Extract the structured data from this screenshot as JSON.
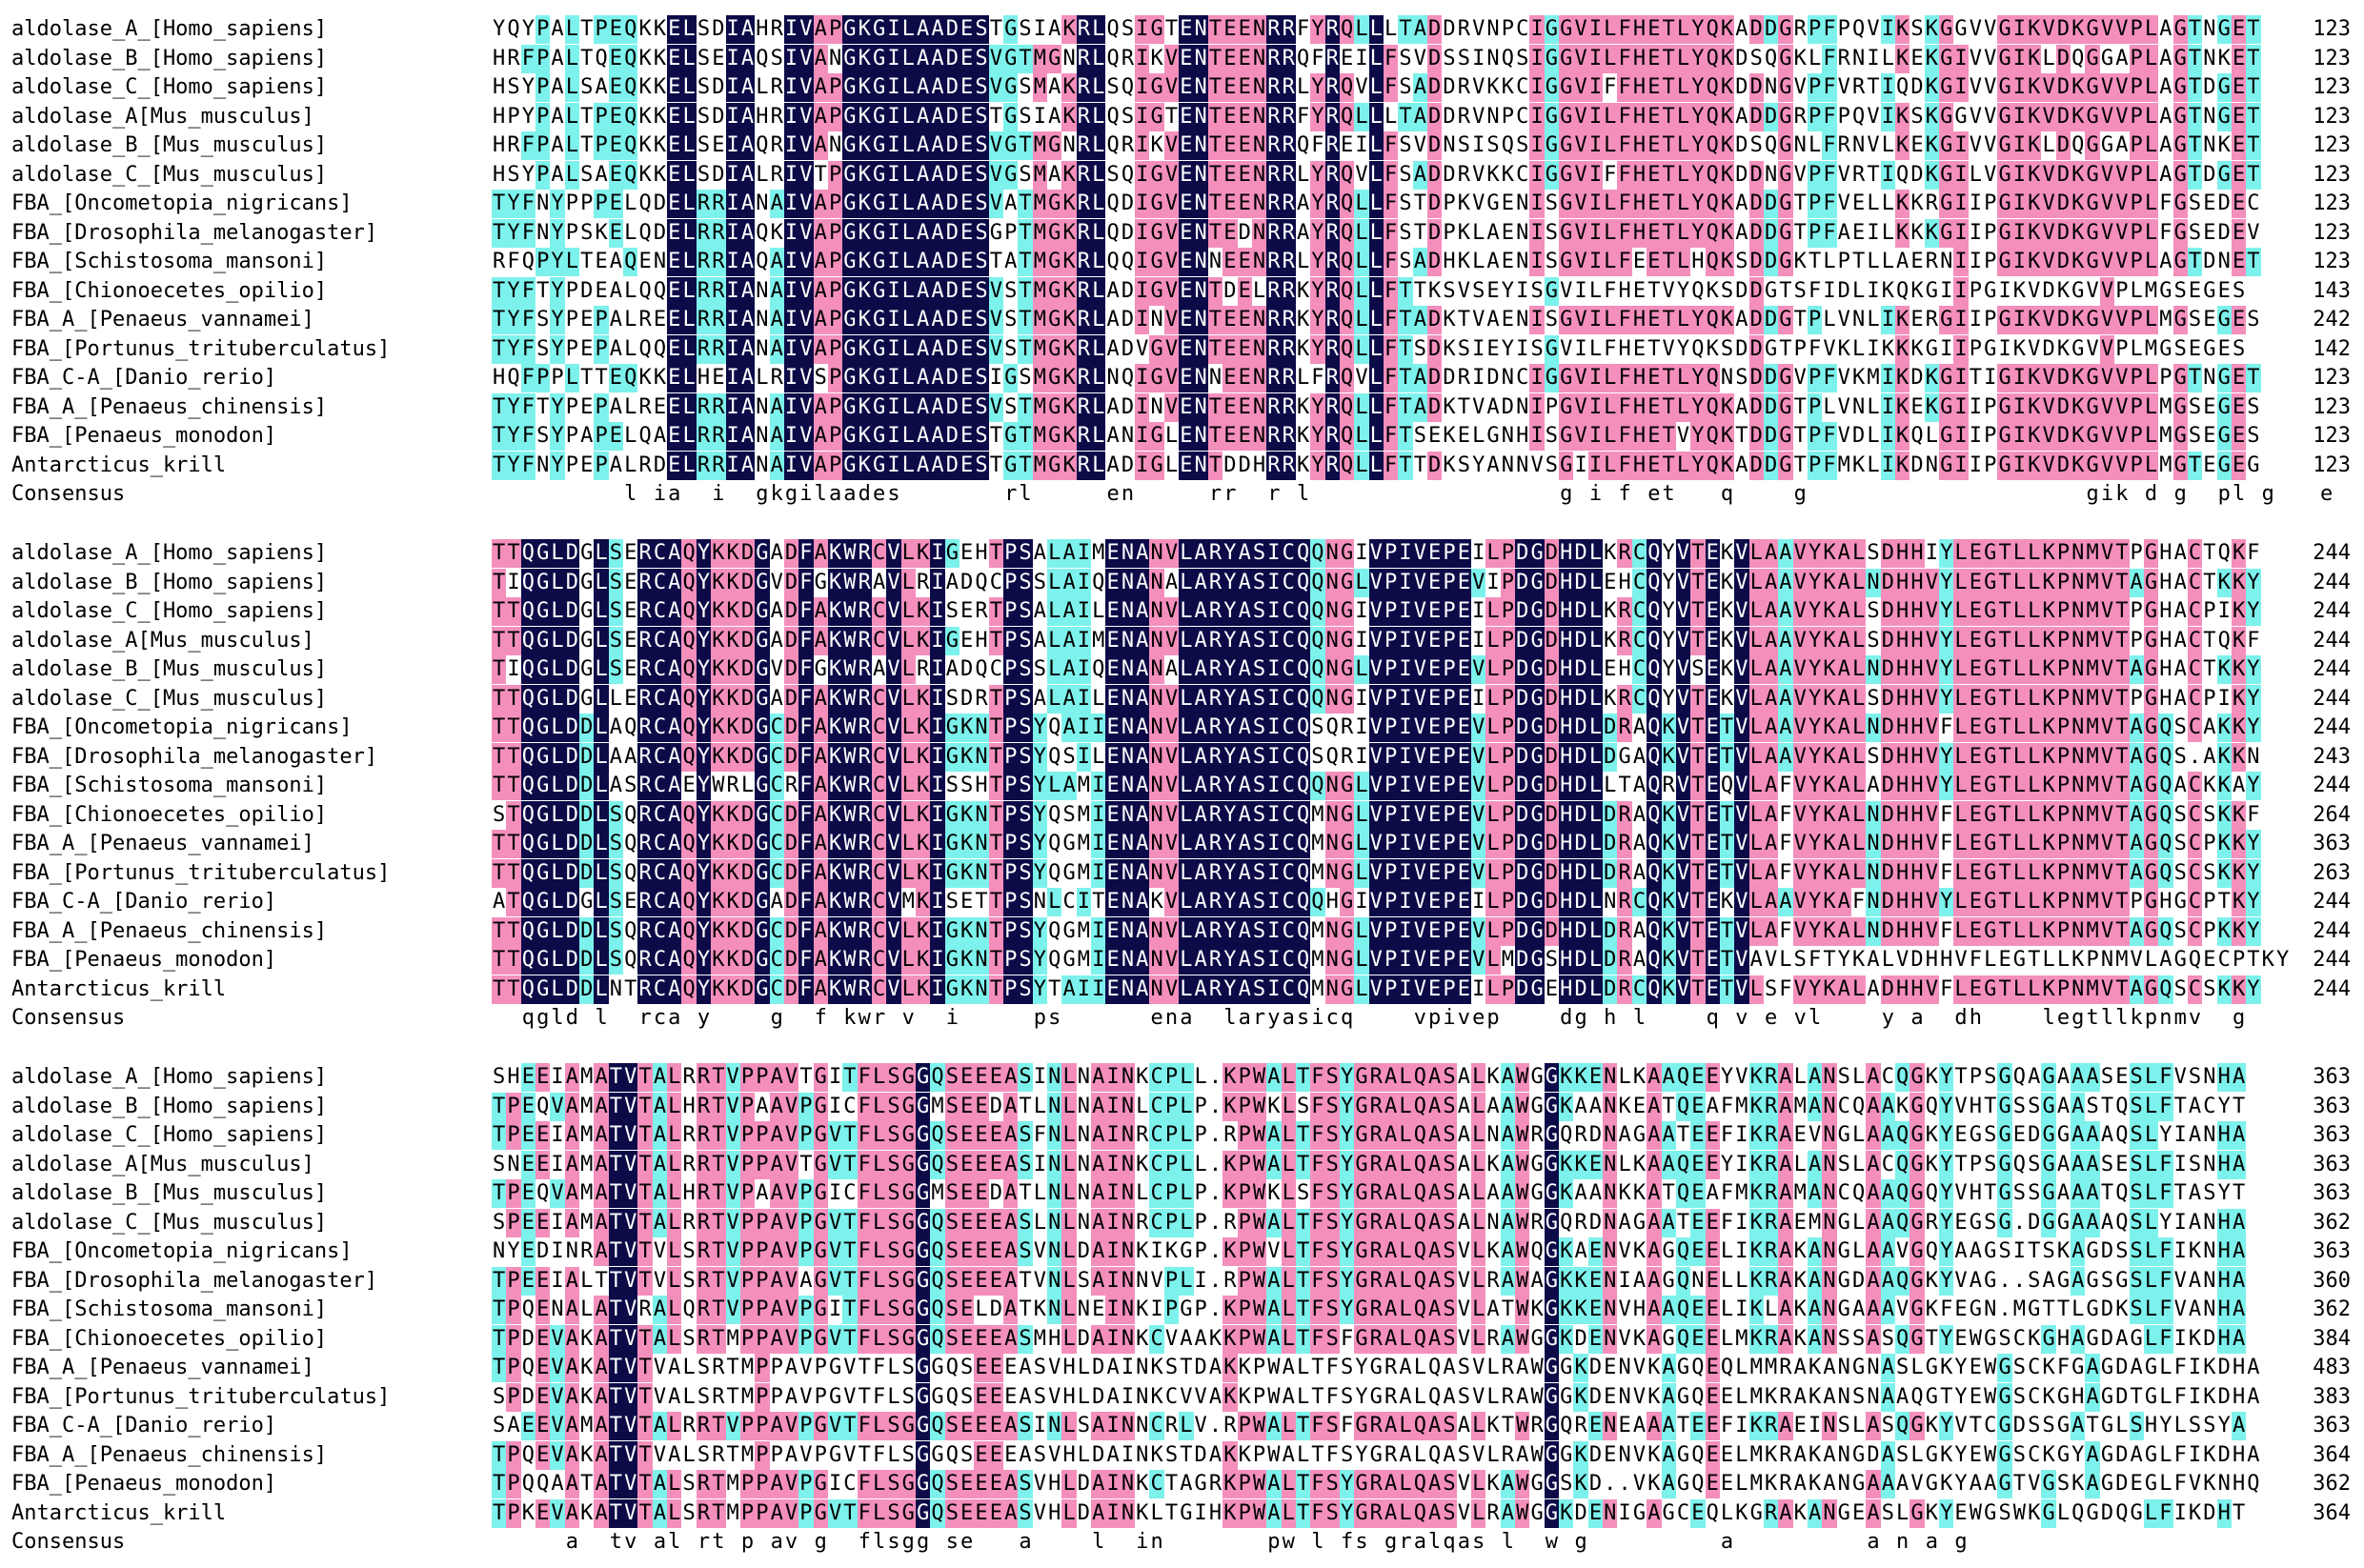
{
  "species": [
    "aldolase_A_[Homo_sapiens]",
    "aldolase_B_[Homo_sapiens]",
    "aldolase_C_[Homo_sapiens]",
    "aldolase_A[Mus_musculus]",
    "aldolase_B_[Mus_musculus]",
    "aldolase_C_[Mus_musculus]",
    "FBA_[Oncometopia_nigricans]",
    "FBA_[Drosophila_melanogaster]",
    "FBA_[Schistosoma_mansoni]",
    "FBA_[Chionoecetes_opilio]",
    "FBA_A_[Penaeus_vannamei]",
    "FBA_[Portunus_trituberculatus]",
    "FBA_C-A_[Danio_rerio]",
    "FBA_A_[Penaeus_chinensis]",
    "FBA_[Penaeus_monodon]",
    "Antarcticus_krill"
  ],
  "consensus_label": "Consensus",
  "blocks": [
    {
      "seqs": [
        "YQYPALTPEQKKELSDIAHRIVAPGKGILAADESTGSIAKRLQSIGTENTEENRRFYRQLLLTADDRVNPCIGGVILFHETLYQKADDGRPFPQVIKSKGGVVGIKVDKGVVPLAGTNGET",
        "HRFPALTQEQKKELSEIAQSIVANGKGILAADESVGTMGNRLQRIKVENTEENRRQFREILFSVDSSINQSIGGVILFHETLYQKDSQGKLFRNILKEKGIVVGIKLDQGGAPLAGTNKET",
        "HSYPALSAEQKKELSDIALRIVAPGKGILAADESVGSMAKRLSQIGVENTEENRRLYRQVLFSADDRVKKCIGGVIFFHETLYQKDDNGVPFVRTIQDKGIVVGIKVDKGVVPLAGTDGET",
        "HPYPALTPEQKKELSDIAHRIVAPGKGILAADESTGSIAKRLQSIGTENTEENRRFYRQLLLTADDRVNPCIGGVILFHETLYQKADDGRPFPQVIKSKGGVVGIKVDKGVVPLAGTNGET",
        "HRFPALTPEQKKELSEIAQRIVANGKGILAADESVGTMGNRLQRIKVENTEENRRQFREILFSVDNSISQSIGGVILFHETLYQKDSQGNLFRNVLKEKGIVVGIKLDQGGAPLAGTNKET",
        "HSYPALSAEQKKELSDIALRIVTPGKGILAADESVGSMAKRLSQIGVENTEENRRLYRQVLFSADDRVKKCIGGVIFFHETLYQKDDNGVPFVRTIQDKGILVGIKVDKGVVPLAGTDGET",
        "TYFNYPPPELQDELRRIANAIVAPGKGILAADESVATMGKRLQDIGVENTEENRRAYRQLLFSTDPKVGENISGVILFHETLYQKADDGTPFVELLKKRGIIPGIKVDKGVVPLFGSEDEC",
        "TYFNYPSKELQDELRRIAQKIVAPGKGILAADESGPTMGKRLQDIGVENTEDNRRAYRQLLFSTDPKLAENISGVILFHETLYQKADDGTPFAEILKKKGIIPGIKVDKGVVPLFGSEDEV",
        "RFQPYLTEAQENELRRIAQAIVAPGKGILAADESTATMGKRLQQIGVENNEENRRLYRQLLFSADHKLAENISGVILFEETLHQKSDDGKTLPTLLAERNIIPGIKVDKGVVPLAGTDNET",
        "TYFTYPDEALQQELRRIANAIVAPGKGILAADESVSTMGKRLADIGVENTDELRRKYRQLLFTTKSVSEYISGVILFHETVYQKSDDGTSFIDLIKQKGIIPGIKVDKGVVPLMGSEGES",
        "TYFSYPEPALREELRRIANAIVAPGKGILAADESVSTMGKRLADINVENTEENRRKYRQLLFTADKTVAENISGVILFHETLYQKADDGTPLVNLIKERGIIPGIKVDKGVVPLMGSEGES",
        "TYFSYPEPALQQELRRIANAIVAPGKGILAADESVSTMGKRLADVGVENTEENRRKYRQLLFTSDKSIEYISGVILFHETVYQKSDDGTPFVKLIKKKGIIPGIKVDKGVVPLMGSEGES",
        "HQFPPLTTEQKKELHEIALRIVSPGKGILAADESIGSMGKRLNQIGVENNEENRRLFRQVLFTADDRIDNCIGGVILFHETLYQNSDDGVPFVKMIKDKGITIGIKVDKGVVPLPGTNGET",
        "TYFTYPEPALREELRRIANAIVAPGKGILAADESVSTMGKRLADINVENTEENRRKYRQLLFTADKTVADNIPGVILFHETLYQKADDGTPLVNLIKEKGIIPGIKVDKGVVPLMGSEGES",
        "TYFSYPAPELQAELRRIANAIVAPGKGILAADESTGTMGKRLANIGLENTEENRRKYRQLLFTSEKELGNHISGVILFHETVYQKTDDGTPFVDLIKQLGIIPGIKVDKGVVPLMGSEGES",
        "TYFNYPEPALRDELRRIANAIVAPGKGILAADESTGTMGKRLADIGLENTDDHRRKYRQLLFTTDKSYANNVSGIILFHETLYQKADDGTPFMKLIKDNGIIPGIKVDKGVVPLMGTEGEG"
      ],
      "nums": [
        "123",
        "123",
        "123",
        "123",
        "123",
        "123",
        "123",
        "123",
        "123",
        "143",
        "242",
        "142",
        "123",
        "123",
        "123",
        "123"
      ],
      "consensus": "         l ia  i  gkgilaades       rl     en     rr  r l                 g i f et   q    g                   gik d g  pl g   e"
    },
    {
      "seqs": [
        "TTQGLDGLSERCAQYKKDGADFAKWRCVLKIGEHTPSALAIMENANVLARYASICQQNGIVPIVEPEILPDGDHDLKRCQYVTEKVLAAVYKALSDHHIYLEGTLLKPNMVTPGHACTQKF",
        "TIQGLDGLSERCAQYKKDGVDFGKWRAVLRIADQCPSSLAIQENANALARYASICQQNGLVPIVEPEVIPDGDHDLEHCQYVTEKVLAAVYKALNDHHVYLEGTLLKPNMVTAGHACTKKY",
        "TTQGLDGLSERCAQYKKDGADFAKWRCVLKISERTPSALAILENANVLARYASICQQNGIVPIVEPEILPDGDHDLKRCQYVTEKVLAAVYKALSDHHVYLEGTLLKPNMVTPGHACPIKY",
        "TTQGLDGLSERCAQYKKDGADFAKWRCVLKIGEHTPSALAIMENANVLARYASICQQNGIVPIVEPEILPDGDHDLKRCQYVTEKVLAAVYKALSDHHVYLEGTLLKPNMVTPGHACTQKF",
        "TIQGLDGLSERCAQYKKDGVDFGKWRAVLRIADQCPSSLAIQENANALARYASICQQNGLVPIVEPEVLPDGDHDLEHCQYVSEKVLAAVYKALNDHHVYLEGTLLKPNMVTAGHACTKKY",
        "TTQGLDGLLERCAQYKKDGADFAKWRCVLKISDRTPSALAILENANVLARYASICQQNGIVPIVEPEILPDGDHDLKRCQYVTEKVLAAVYKALSDHHVYLEGTLLKPNMVTPGHACPIKY",
        "TTQGLDDLAQRCAQYKKDGCDFAKWRCVLKIGKNTPSYQAIIENANVLARYASICQSQRIVPIVEPEVLPDGDHDLDRAQKVTETVLAAVYKALNDHHVFLEGTLLKPNMVTAGQSCAKKY",
        "TTQGLDDLAARCAQYKKDGCDFAKWRCVLKIGKNTPSYQSILENANVLARYASICQSQRIVPIVEPEVLPDGDHDLDGAQKVTETVLAAVYKALSDHHVYLEGTLLKPNMVTAGQS.AKKN",
        "TTQGLDDLASRCAEYWRLGCRFAKWRCVLKISSHTPSYLAMIENANVLARYASICQQNGLVPIVEPEVLPDGDHDLLTAQRVTEQVLAFVYKALADHHVYLEGTLLKPNMVTAGQACKKAY",
        "STQGLDDLSQRCAQYKKDGCDFAKWRCVLKIGKNTPSYQSMIENANVLARYASICQMNGLVPIVEPEVLPDGDHDLDRAQKVTETVLAFVYKALNDHHVFLEGTLLKPNMVTAGQSCSKKF",
        "TTQGLDDLSQRCAQYKKDGCDFAKWRCVLKIGKNTPSYQGMIENANVLARYASICQMNGLVPIVEPEVLPDGDHDLDRAQKVTETVLAFVYKALNDHHVFLEGTLLKPNMVTAGQSCPKKY",
        "TTQGLDDLSQRCAQYKKDGCDFAKWRCVLKIGKNTPSYQGMIENANVLARYASICQMNGLVPIVEPEVLPDGDHDLDRAQKVTETVLAFVYKALNDHHVFLEGTLLKPNMVTAGQSCSKKY",
        "ATQGLDGLSERCAQYKKDGADFAKWRCVMKISETTPSNLCITENAKVLARYASICQQHGIVPIVEPEILPDGDHDLNRCQKVTEKVLAAVYKAFNDHHVYLEGTLLKPNMVTPGHGCPTKY",
        "TTQGLDDLSQRCAQYKKDGCDFAKWRCVLKIGKNTPSYQGMIENANVLARYASICQMNGLVPIVEPEVLPDGDHDLDRAQKVTETVLAFVYKALNDHHVFLEGTLLKPNMVTAGQSCPKKY",
        "TTQGLDDLSQRCAQYKKDGCDFAKWRCVLKIGKNTPSYQGMIENANVLARYASICQMNGLVPIVEPEVLMDGSHDLDRAQKVTETVAVLSFTYKALVDHHVFLEGTLLKPNMVLAGQECPTKY",
        "TTQGLDDLNTRCAQYKKDGCDFAKWRCVLKIGKNTPSYTAIIENANVLARYASICQMNGLVPIVEPEILPDGEHDLDRCQKVTETVLSFVYKALADHHVFLEGTLLKPNMVTAGQSCSKKY"
      ],
      "nums": [
        "244",
        "244",
        "244",
        "244",
        "244",
        "244",
        "244",
        "243",
        "244",
        "264",
        "363",
        "263",
        "244",
        "244",
        "244",
        "244"
      ],
      "consensus": "  qgld l  rca y    g  f kwr v  i     ps      ena  laryasicq    vpivep    dg h l    q v e vl    y a  dh    legtllkpnmv  g"
    },
    {
      "seqs": [
        "SHEEIAMATVTALRRTVPPAVTGITFLSGGQSEEEASINLNAINKCPLL.KPWALTFSYGRALQASALKAWGGKKENLKAAQEEYVKRALANSLACQGKYTPSGQAGAAASESLFVSNHA",
        "TPEQVAMATVTALHRTVPAAVPGICFLSGGMSEEDATLNLNAINLCPLP.KPWKLSFSYGRALQASALAAWGGKAANKEATQEAFMKRAMANCQAAKGQYVHTGSSGAASTQSLFTACYT",
        "TPEEIAMATVTALRRTVPPAVPGVTFLSGGQSEEEASFNLNAINRCPLP.RPWALTFSYGRALQASALNAWRGQRDNAGAATEEFIKRAEVNGLAAQGKYEGSGEDGGAAAQSLYIANHA",
        "SNEEIAMATVTALRRTVPPAVTGVTFLSGGQSEEEASINLNAINKCPLL.KPWALTFSYGRALQASALKAWGGKKENLKAAQEEYIKRALANSLACQGKYTPSGQSGAAASESLFISNHA",
        "TPEQVAMATVTALHRTVPAAVPGICFLSGGMSEEDATLNLNAINLCPLP.KPWKLSFSYGRALQASALAAWGGKAANKKATQEAFMKRAMANCQAAQGQYVHTGSSGAAATQSLFTASYT",
        "SPEEIAMATVTALRRTVPPAVPGVTFLSGGQSEEEASLNLNAINRCPLP.RPWALTFSYGRALQASALNAWRGQRDNAGAATEEFIKRAEMNGLAAQGRYEGSG.DGGAAAQSLYIANHA",
        "NYEDINRATVTVLSRTVPPAVPGVTFLSGGQSEEEASVNLDAINKIKGP.KPWVLTFSYGRALQASVLKAWQGKAENVKAGQEELIKRAKANGLAAVGQYAAGSITSKAGDSSLFIKNHA",
        "TPEEIALTTVTVLSRTVPPAVAGVTFLSGGQSEEEATVNLSAINNVPLI.RPWALTFSYGRALQASVLRAWAGKKENIAAGQNELLKRAKANGDAAQGKYVAG..SAGAGSGSLFVANHA",
        "TPQENALATVRALQRTVPPAVPGITFLSGGQSELDATKNLNEINKIPGP.KPWALTFSYGRALQASVLATWKGKKENVHAAQEELIKLAKANGAAAVGKFEGN.MGTTLGDKSLFVANHA",
        "TPDEVAKATVTALSRTMPPAVPGVTFLSGGQSEEEASMHLDAINKCVAAKKPWALTFSFGRALQASVLRAWGGKDENVKAGQEELMKRAKANSSASQGTYEWGSCKGHAGDAGLFIKDHA",
        "TPQEVAKATVTVALSRTMPPAVPGVTFLSGGQSEEEASVHLDAINKSTDAKKPWALTFSYGRALQASVLRAWGGKDENVKAGQEQLMMRAKANGNASLGKYEWGSCKFGAGDAGLFIKDHA",
        "SPDEVAKATVTVALSRTMPPAVPGVTFLSGGQSEEEASVHLDAINKCVVAKKPWALTFSYGRALQASVLRAWGGKDENVKAGQEELMKRAKANSNAAQGTYEWGSCKGHAGDTGLFIKDHA",
        "SAEEVAMATVTALRRTVPPAVPGVTFLSGGQSEEEASINLSAINNCRLV.RPWALTFSFGRALQASALKTWRGQRENEAAATEEFIKRAEINSLASQGKYVTCGDSSGATGLSHYLSSYA",
        "TPQEVAKATVTVALSRTMPPAVPGVTFLSGGQSEEEASVHLDAINKSTDAKKPWALTFSYGRALQASVLRAWGGKDENVKAGQEELMKRAKANGDASLGKYEWGSCKGYAGDAGLFIKDHA",
        "TPQQAATATVTALSRTMPPAVPGICFLSGGQSEEEASVHLDAINKCTAGRKPWALTFSYGRALQASVLKAWGGSKD..VKAGQEELMKRAKANGAAAVGKYAAGTVGSKAGDEGLFVKNHQ",
        "TPKEVAKATVTALSRTMPPAVPGVTFLSGGQSEEEASVHLDAINKLTGIHKPWALTFSYGRALQASVLRAWGGKDENIGAGCEQLKGRAKANGEASLGKYEWGSWKGLQGDQGLFIKDHT"
      ],
      "nums": [
        "363",
        "363",
        "363",
        "363",
        "363",
        "362",
        "363",
        "360",
        "362",
        "384",
        "483",
        "383",
        "363",
        "364",
        "362",
        "364"
      ],
      "consensus": "     a  tv al rt p av g  flsgg se   a    l  in       pw l fs gralqas l  w g         a         a n a g"
    }
  ]
}
